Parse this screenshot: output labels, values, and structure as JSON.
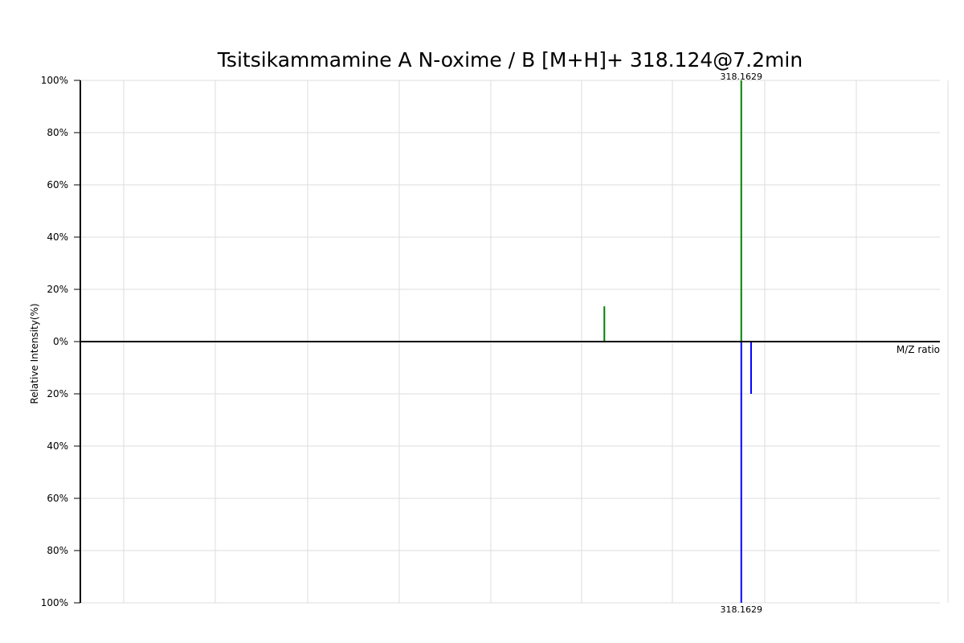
{
  "chart_data": {
    "type": "bar",
    "title": "Tsitsikammamine A N-oxime / B [M+H]+ 318.124@7.2min",
    "xlabel": "M/Z ratio",
    "ylabel": "Relative Intensity(%)",
    "y_tick_labels": [
      "100%",
      "80%",
      "60%",
      "40%",
      "20%",
      "0%",
      "20%",
      "40%",
      "60%",
      "80%",
      "100%"
    ],
    "ylim_top": [
      0,
      100
    ],
    "ylim_bottom": [
      0,
      100
    ],
    "xlim": [
      126.7,
      375.7
    ],
    "grid": true,
    "colors": {
      "top": "#008000",
      "bottom": "#0000ff",
      "grid": "#dddddd",
      "axis": "#000000"
    },
    "series": [
      {
        "direction": "up",
        "peaks": [
          {
            "mz": 278.5,
            "intensity": 13.5
          },
          {
            "mz": 318.1629,
            "intensity": 100,
            "label": "318.1629"
          }
        ]
      },
      {
        "direction": "down",
        "peaks": [
          {
            "mz": 318.1629,
            "intensity": 100,
            "label": "318.1629"
          },
          {
            "mz": 321.0,
            "intensity": 20
          }
        ]
      }
    ]
  }
}
